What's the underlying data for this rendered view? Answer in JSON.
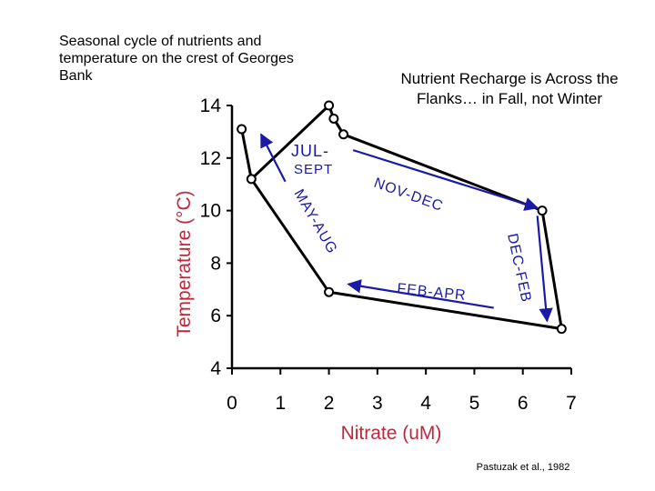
{
  "title_left": "Seasonal cycle of nutrients and temperature on the crest of Georges Bank",
  "title_right": "Nutrient Recharge is Across the Flanks… in Fall, not Winter",
  "credit": "Pastuzak et al., 1982",
  "colors": {
    "axis_label": "#c0283c",
    "arrow": "#1a1aa6",
    "line": "#000000"
  },
  "chart_data": {
    "type": "line",
    "xlabel": "Nitrate (uM)",
    "ylabel": "Temperature (°C)",
    "xlim": [
      0,
      7
    ],
    "ylim": [
      4,
      14
    ],
    "x_ticks": [
      "0",
      "1",
      "2",
      "3",
      "4",
      "5",
      "6",
      "7"
    ],
    "y_ticks": [
      "4",
      "6",
      "8",
      "10",
      "12",
      "14"
    ],
    "grid": false,
    "series": [
      {
        "points": [
          {
            "x": 0.2,
            "y": 13.1
          },
          {
            "x": 0.4,
            "y": 11.2
          },
          {
            "x": 2.0,
            "y": 14.0
          },
          {
            "x": 2.1,
            "y": 13.5
          },
          {
            "x": 2.3,
            "y": 12.9
          },
          {
            "x": 6.4,
            "y": 10.0
          },
          {
            "x": 6.8,
            "y": 5.5
          },
          {
            "x": 2.0,
            "y": 6.9
          },
          {
            "x": 0.4,
            "y": 11.2
          }
        ]
      }
    ],
    "annotations": [
      {
        "label": "JUL-",
        "from": [
          1.1,
          11.1
        ],
        "to": [
          0.6,
          12.9
        ]
      },
      {
        "label": "SEPT"
      },
      {
        "label": "NOV-DEC",
        "from": [
          2.5,
          12.3
        ],
        "to": [
          6.3,
          10.1
        ]
      },
      {
        "label": "DEC-FEB",
        "from": [
          6.3,
          9.8
        ],
        "to": [
          6.5,
          5.8
        ]
      },
      {
        "label": "FEB-APR",
        "from": [
          5.4,
          6.3
        ],
        "to": [
          2.4,
          7.2
        ]
      },
      {
        "label": "MAY-AUG"
      }
    ]
  }
}
